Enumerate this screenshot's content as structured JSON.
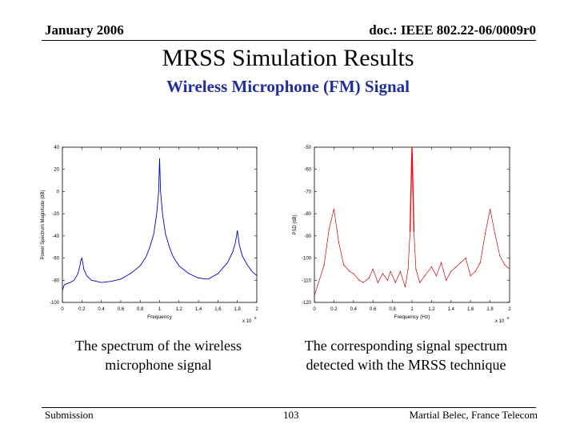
{
  "header": {
    "left": "January 2006",
    "right": "doc.: IEEE 802.22-06/0009r0"
  },
  "title": "MRSS Simulation Results",
  "subtitle": "Wireless Microphone (FM) Signal",
  "captions": {
    "left": "The spectrum of the wireless microphone signal",
    "right": "The corresponding signal spectrum detected with the MRSS technique"
  },
  "footer": {
    "left": "Submission",
    "center": "103",
    "right": "Martial Belec, France Telecom"
  },
  "colors": {
    "subtitle": "#1f2e9c",
    "left_series": "#0000cc",
    "right_series": "#cc0000",
    "right_peak": "#ff0000"
  },
  "chart_data": [
    {
      "type": "line",
      "xlabel": "Frequency",
      "ylabel": "Power Spectrum Magnitude (dB)",
      "x_exponent_label": "x 10",
      "x_exponent": "8",
      "xlim": [
        0,
        2
      ],
      "ylim": [
        -100,
        40
      ],
      "xticks": [
        "0",
        "0.2",
        "0.4",
        "0.6",
        "0.8",
        "1",
        "1.2",
        "1.4",
        "1.6",
        "1.8",
        "2"
      ],
      "yticks": [
        "40",
        "20",
        "0",
        "-20",
        "-40",
        "-60",
        "-80",
        "-100"
      ],
      "grid": false,
      "peaks": [
        {
          "x": 0.2,
          "y": -60
        },
        {
          "x": 1.0,
          "y": 30
        },
        {
          "x": 1.8,
          "y": -35
        }
      ],
      "series": [
        {
          "points": [
            [
              0,
              -89
            ],
            [
              0.02,
              -84
            ],
            [
              0.05,
              -83
            ],
            [
              0.08,
              -82
            ],
            [
              0.12,
              -80
            ],
            [
              0.16,
              -74
            ],
            [
              0.18,
              -67
            ],
            [
              0.19,
              -62
            ],
            [
              0.2,
              -60
            ],
            [
              0.21,
              -64
            ],
            [
              0.22,
              -70
            ],
            [
              0.25,
              -76
            ],
            [
              0.3,
              -80
            ],
            [
              0.4,
              -82
            ],
            [
              0.5,
              -81
            ],
            [
              0.6,
              -79
            ],
            [
              0.7,
              -74
            ],
            [
              0.8,
              -67
            ],
            [
              0.86,
              -59
            ],
            [
              0.9,
              -50
            ],
            [
              0.94,
              -38
            ],
            [
              0.97,
              -20
            ],
            [
              0.99,
              0
            ],
            [
              1.0,
              30
            ],
            [
              1.01,
              0
            ],
            [
              1.03,
              -20
            ],
            [
              1.06,
              -38
            ],
            [
              1.1,
              -50
            ],
            [
              1.14,
              -59
            ],
            [
              1.2,
              -67
            ],
            [
              1.3,
              -74
            ],
            [
              1.4,
              -78
            ],
            [
              1.5,
              -79
            ],
            [
              1.6,
              -74
            ],
            [
              1.7,
              -64
            ],
            [
              1.75,
              -55
            ],
            [
              1.78,
              -46
            ],
            [
              1.8,
              -35
            ],
            [
              1.82,
              -48
            ],
            [
              1.85,
              -58
            ],
            [
              1.9,
              -66
            ],
            [
              1.95,
              -72
            ],
            [
              2.0,
              -76
            ]
          ]
        }
      ]
    },
    {
      "type": "line",
      "xlabel": "Frequency (Hz)",
      "ylabel": "PSD (dB)",
      "x_exponent_label": "x 10",
      "x_exponent": "8",
      "xlim": [
        0,
        2
      ],
      "ylim": [
        -120,
        -50
      ],
      "xticks": [
        "0",
        "0.2",
        "0.4",
        "0.6",
        "0.8",
        "1",
        "1.2",
        "1.4",
        "1.6",
        "1.8",
        "2"
      ],
      "yticks": [
        "-50",
        "-60",
        "-70",
        "-80",
        "-90",
        "-100",
        "-110",
        "-120"
      ],
      "grid": false,
      "series": [
        {
          "points": [
            [
              0.0,
              -117
            ],
            [
              0.1,
              -103
            ],
            [
              0.15,
              -87
            ],
            [
              0.2,
              -78
            ],
            [
              0.25,
              -93
            ],
            [
              0.3,
              -103
            ],
            [
              0.36,
              -106
            ],
            [
              0.4,
              -107
            ],
            [
              0.46,
              -110
            ],
            [
              0.5,
              -111
            ],
            [
              0.56,
              -109
            ],
            [
              0.6,
              -105
            ],
            [
              0.65,
              -111
            ],
            [
              0.7,
              -107
            ],
            [
              0.75,
              -110
            ],
            [
              0.78,
              -106
            ],
            [
              0.83,
              -111
            ],
            [
              0.88,
              -106
            ],
            [
              0.93,
              -113
            ],
            [
              0.96,
              -105
            ],
            [
              0.98,
              -88
            ],
            [
              1.0,
              -50
            ],
            [
              1.02,
              -88
            ],
            [
              1.04,
              -105
            ],
            [
              1.08,
              -111
            ],
            [
              1.13,
              -108
            ],
            [
              1.2,
              -104
            ],
            [
              1.25,
              -108
            ],
            [
              1.3,
              -102
            ],
            [
              1.35,
              -110
            ],
            [
              1.4,
              -106
            ],
            [
              1.45,
              -104
            ],
            [
              1.5,
              -102
            ],
            [
              1.55,
              -100
            ],
            [
              1.6,
              -108
            ],
            [
              1.65,
              -106
            ],
            [
              1.7,
              -102
            ],
            [
              1.75,
              -89
            ],
            [
              1.8,
              -78
            ],
            [
              1.85,
              -89
            ],
            [
              1.9,
              -99
            ],
            [
              1.95,
              -103
            ],
            [
              2.0,
              -105
            ]
          ]
        }
      ]
    }
  ]
}
